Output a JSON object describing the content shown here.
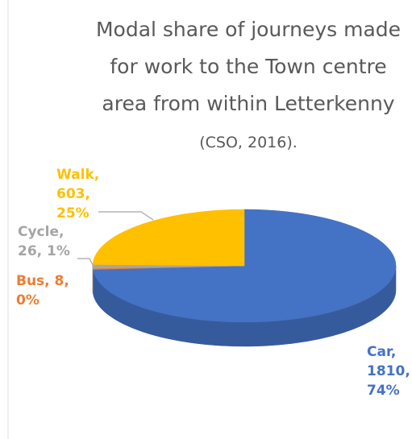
{
  "chart_data": {
    "type": "pie",
    "title": "Modal share of journeys made for work to the Town centre area from within Letterkenny",
    "title_source": "(CSO, 2016).",
    "categories": [
      "Car",
      "Bus",
      "Cycle",
      "Walk"
    ],
    "values": [
      1810,
      8,
      26,
      603
    ],
    "value_labels": [
      "Car, 1810, 74%",
      "Bus, 8, 0%",
      "Cycle, 26, 1%",
      "Walk, 603, 25%"
    ],
    "colors": [
      "#4472c4",
      "#ed7d31",
      "#a5a5a5",
      "#ffc000"
    ]
  }
}
